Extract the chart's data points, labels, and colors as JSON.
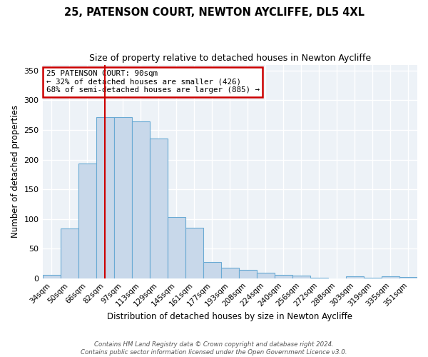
{
  "title": "25, PATENSON COURT, NEWTON AYCLIFFE, DL5 4XL",
  "subtitle": "Size of property relative to detached houses in Newton Aycliffe",
  "xlabel": "Distribution of detached houses by size in Newton Aycliffe",
  "ylabel": "Number of detached properties",
  "bar_labels": [
    "34sqm",
    "50sqm",
    "66sqm",
    "82sqm",
    "97sqm",
    "113sqm",
    "129sqm",
    "145sqm",
    "161sqm",
    "177sqm",
    "193sqm",
    "208sqm",
    "224sqm",
    "240sqm",
    "256sqm",
    "272sqm",
    "288sqm",
    "303sqm",
    "319sqm",
    "335sqm",
    "351sqm"
  ],
  "bar_values": [
    6,
    84,
    193,
    272,
    272,
    265,
    235,
    103,
    85,
    27,
    18,
    14,
    9,
    6,
    4,
    1,
    0,
    3,
    1,
    3,
    2
  ],
  "bar_color": "#c8d8ea",
  "bar_edge_color": "#6aaad4",
  "vline_x_idx": 3,
  "vline_color": "#cc0000",
  "ylim": [
    0,
    360
  ],
  "yticks": [
    0,
    50,
    100,
    150,
    200,
    250,
    300,
    350
  ],
  "annotation_title": "25 PATENSON COURT: 90sqm",
  "annotation_line1": "← 32% of detached houses are smaller (426)",
  "annotation_line2": "68% of semi-detached houses are larger (885) →",
  "annotation_box_color": "#ffffff",
  "annotation_box_edge": "#cc0000",
  "bg_color": "#edf2f7",
  "grid_color": "#ffffff",
  "footer1": "Contains HM Land Registry data © Crown copyright and database right 2024.",
  "footer2": "Contains public sector information licensed under the Open Government Licence v3.0."
}
